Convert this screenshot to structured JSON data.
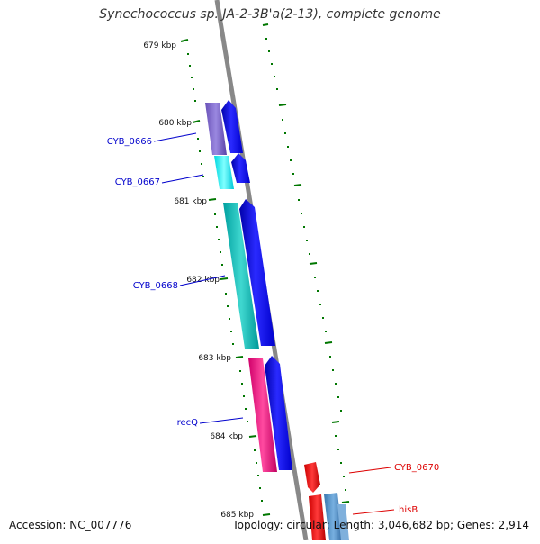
{
  "title": "Synechococcus sp. JA-2-3B'a(2-13), complete genome",
  "kbp_labels": [
    "679 kbp",
    "680 kbp",
    "681 kbp",
    "682 kbp",
    "683 kbp",
    "684 kbp",
    "685 kbp"
  ],
  "genes_left": [
    "CYB_0666",
    "CYB_0667",
    "CYB_0668",
    "recQ"
  ],
  "genes_right": [
    "CYB_0670",
    "hisB"
  ],
  "accession": "Accession: NC_007776",
  "topology": "Topology: circular; Length: 3,046,682 bp; Genes: 2,914",
  "colors": {
    "gene_label_left": "#0000cc",
    "gene_label_right": "#dd0000",
    "tick_green": "#007700",
    "backbone": "#888888"
  }
}
